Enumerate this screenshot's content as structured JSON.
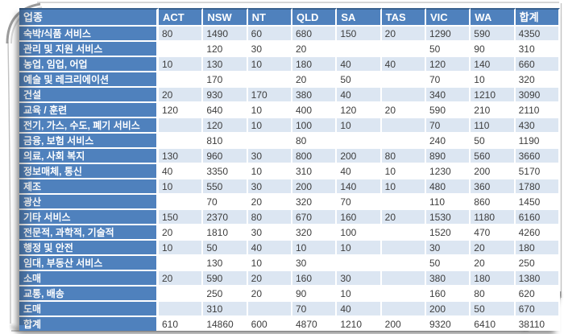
{
  "table": {
    "columns": [
      "업종",
      "ACT",
      "NSW",
      "NT",
      "QLD",
      "SA",
      "TAS",
      "VIC",
      "WA",
      "합계"
    ],
    "rows": [
      {
        "label": "숙박/식품 서비스",
        "values": [
          "80",
          "1490",
          "60",
          "680",
          "150",
          "20",
          "1290",
          "590",
          "4350"
        ]
      },
      {
        "label": "관리 및 지원 서비스",
        "values": [
          "",
          "120",
          "30",
          "20",
          "",
          "",
          "50",
          "90",
          "310"
        ]
      },
      {
        "label": "농업, 임업, 어업",
        "values": [
          "10",
          "130",
          "10",
          "180",
          "40",
          "40",
          "120",
          "140",
          "660"
        ]
      },
      {
        "label": "예술 및 레크리에이션",
        "values": [
          "",
          "170",
          "",
          "20",
          "50",
          "",
          "70",
          "10",
          "320"
        ]
      },
      {
        "label": "건설",
        "values": [
          "20",
          "930",
          "170",
          "380",
          "40",
          "",
          "340",
          "1210",
          "3090"
        ]
      },
      {
        "label": "교육 / 훈련",
        "values": [
          "120",
          "640",
          "10",
          "400",
          "120",
          "20",
          "590",
          "210",
          "2110"
        ]
      },
      {
        "label": "전기, 가스, 수도, 폐기 서비스",
        "values": [
          "",
          "120",
          "10",
          "100",
          "10",
          "",
          "70",
          "110",
          "430"
        ]
      },
      {
        "label": "금융, 보험 서비스",
        "values": [
          "",
          "810",
          "",
          "80",
          "",
          "",
          "240",
          "50",
          "1190"
        ]
      },
      {
        "label": "의료, 사회 복지",
        "values": [
          "130",
          "960",
          "30",
          "800",
          "200",
          "80",
          "890",
          "560",
          "3660"
        ]
      },
      {
        "label": "정보매체, 통신",
        "values": [
          "40",
          "3350",
          "10",
          "310",
          "40",
          "10",
          "1230",
          "200",
          "5170"
        ]
      },
      {
        "label": "제조",
        "values": [
          "10",
          "550",
          "30",
          "200",
          "140",
          "10",
          "480",
          "360",
          "1780"
        ]
      },
      {
        "label": "광산",
        "values": [
          "",
          "70",
          "20",
          "320",
          "70",
          "",
          "110",
          "860",
          "1450"
        ]
      },
      {
        "label": "기타 서비스",
        "values": [
          "150",
          "2370",
          "80",
          "670",
          "160",
          "20",
          "1530",
          "1180",
          "6160"
        ]
      },
      {
        "label": "전문적, 과학적, 기술적",
        "values": [
          "20",
          "1810",
          "30",
          "320",
          "100",
          "",
          "1520",
          "470",
          "4260"
        ]
      },
      {
        "label": "행정 및 안전",
        "values": [
          "10",
          "50",
          "40",
          "10",
          "10",
          "",
          "30",
          "20",
          "180"
        ]
      },
      {
        "label": "임대, 부동산 서비스",
        "values": [
          "",
          "130",
          "10",
          "30",
          "",
          "",
          "50",
          "20",
          "250"
        ]
      },
      {
        "label": "소매",
        "values": [
          "20",
          "590",
          "20",
          "160",
          "30",
          "",
          "380",
          "180",
          "1380"
        ]
      },
      {
        "label": "교통, 배송",
        "values": [
          "",
          "250",
          "20",
          "90",
          "10",
          "",
          "160",
          "80",
          "620"
        ]
      },
      {
        "label": "도매",
        "values": [
          "",
          "310",
          "",
          "70",
          "40",
          "",
          "200",
          "50",
          "670"
        ]
      },
      {
        "label": "합계",
        "values": [
          "610",
          "14860",
          "600",
          "4870",
          "1210",
          "200",
          "9320",
          "6410",
          "38110"
        ]
      }
    ]
  },
  "colors": {
    "header_blue": "#4f81bd",
    "header_top_border": "#39618e",
    "band": "#dce6f2",
    "cell_text": "#3d3d3d",
    "frame_gray": "#a8a8a8"
  }
}
